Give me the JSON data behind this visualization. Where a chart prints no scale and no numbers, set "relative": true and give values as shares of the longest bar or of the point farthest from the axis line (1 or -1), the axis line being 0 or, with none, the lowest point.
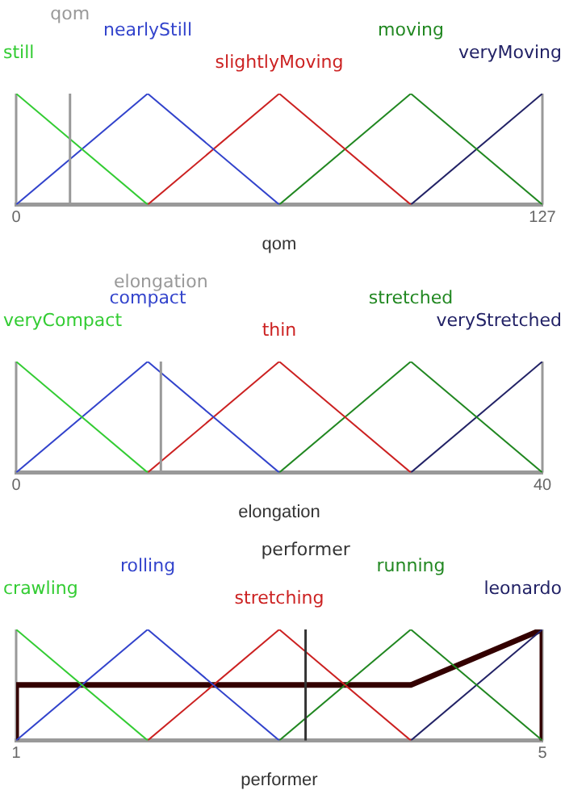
{
  "chart_data": [
    {
      "type": "line",
      "relative": true,
      "xlabel": "qom",
      "xlim": [
        0,
        127
      ],
      "xticks": [
        0,
        127
      ],
      "ref_lines": [
        {
          "axis": "x",
          "value": 13,
          "label": "qom",
          "color": "#999999"
        }
      ],
      "series": [
        {
          "name": "still",
          "color": "#33cc33",
          "x": [
            0,
            31.75
          ],
          "values": [
            1,
            0
          ]
        },
        {
          "name": "nearlyStill",
          "color": "#3344cc",
          "x": [
            0,
            31.75,
            63.5
          ],
          "values": [
            0,
            1,
            0
          ]
        },
        {
          "name": "slightlyMoving",
          "color": "#cc2222",
          "x": [
            31.75,
            63.5,
            95.25
          ],
          "values": [
            0,
            1,
            0
          ]
        },
        {
          "name": "moving",
          "color": "#228822",
          "x": [
            63.5,
            95.25,
            127
          ],
          "values": [
            0,
            1,
            0
          ]
        },
        {
          "name": "veryMoving",
          "color": "#222266",
          "x": [
            95.25,
            127
          ],
          "values": [
            0,
            1
          ]
        }
      ]
    },
    {
      "type": "line",
      "relative": true,
      "xlabel": "elongation",
      "xlim": [
        0,
        40
      ],
      "xticks": [
        0,
        40
      ],
      "ref_lines": [
        {
          "axis": "x",
          "value": 11,
          "label": "elongation",
          "color": "#999999"
        }
      ],
      "series": [
        {
          "name": "veryCompact",
          "color": "#33cc33",
          "x": [
            0,
            10
          ],
          "values": [
            1,
            0
          ]
        },
        {
          "name": "compact",
          "color": "#3344cc",
          "x": [
            0,
            10,
            20
          ],
          "values": [
            0,
            1,
            0
          ]
        },
        {
          "name": "thin",
          "color": "#cc2222",
          "x": [
            10,
            20,
            30
          ],
          "values": [
            0,
            1,
            0
          ]
        },
        {
          "name": "stretched",
          "color": "#228822",
          "x": [
            20,
            30,
            40
          ],
          "values": [
            0,
            1,
            0
          ]
        },
        {
          "name": "veryStretched",
          "color": "#222266",
          "x": [
            30,
            40
          ],
          "values": [
            0,
            1
          ]
        }
      ]
    },
    {
      "type": "line",
      "relative": true,
      "xlabel": "performer",
      "xlim": [
        1,
        5
      ],
      "xticks": [
        1,
        5
      ],
      "ref_lines": [
        {
          "axis": "x",
          "value": 3.2,
          "label": "performer",
          "color": "#333333"
        }
      ],
      "series": [
        {
          "name": "crawling",
          "color": "#33cc33",
          "x": [
            1,
            2
          ],
          "values": [
            1,
            0
          ]
        },
        {
          "name": "rolling",
          "color": "#3344cc",
          "x": [
            1,
            2,
            3
          ],
          "values": [
            0,
            1,
            0
          ]
        },
        {
          "name": "stretching",
          "color": "#cc2222",
          "x": [
            2,
            3,
            4
          ],
          "values": [
            0,
            1,
            0
          ]
        },
        {
          "name": "running",
          "color": "#228822",
          "x": [
            3,
            4,
            5
          ],
          "values": [
            0,
            1,
            0
          ]
        },
        {
          "name": "leonardo",
          "color": "#222266",
          "x": [
            4,
            5
          ],
          "values": [
            0,
            1
          ]
        },
        {
          "color": "#330000",
          "x": [
            1,
            1,
            4,
            5,
            5
          ],
          "values": [
            0,
            0.5,
            0.5,
            1,
            0
          ]
        }
      ]
    }
  ]
}
